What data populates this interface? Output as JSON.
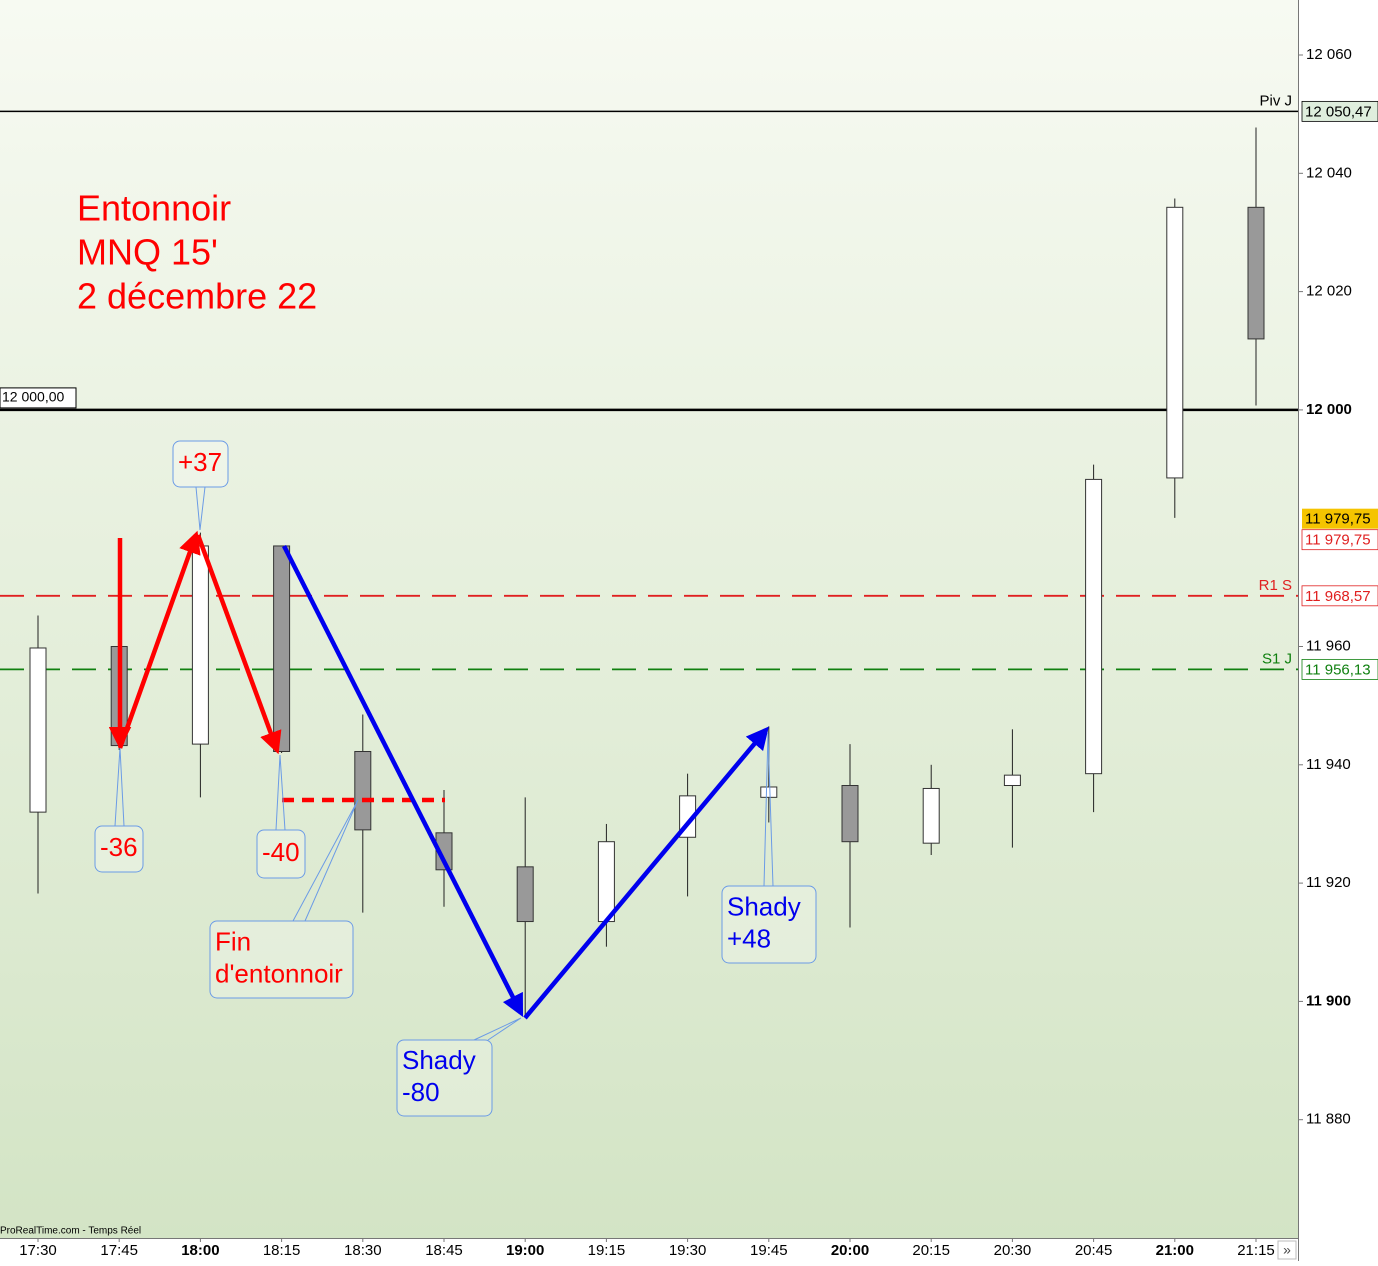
{
  "chart_data": {
    "type": "candlestick",
    "title_lines": [
      "Entonnoir",
      "MNQ 15'",
      "2 décembre 22"
    ],
    "title_color": "#ff0000",
    "categories": [
      "17:30",
      "17:45",
      "18:00",
      "18:15",
      "18:30",
      "18:45",
      "19:00",
      "19:15",
      "19:30",
      "19:45",
      "20:00",
      "20:15",
      "20:30",
      "20:45",
      "21:00",
      "21:15"
    ],
    "series": {
      "open": [
        11932,
        11960,
        11943.5,
        11977,
        11942.25,
        11928.5,
        11922.75,
        11913.5,
        11927.75,
        11934.5,
        11936.5,
        11926.75,
        11936.5,
        11938.5,
        11988.5,
        12034.25
      ],
      "high": [
        11965.25,
        11960.25,
        11979.25,
        11977,
        11948.5,
        11935.75,
        11934.5,
        11930,
        11938.5,
        11946.5,
        11943.5,
        11940,
        11946,
        11990.75,
        12035.75,
        12047.75
      ],
      "low": [
        11918.25,
        11942.5,
        11934.5,
        11942,
        11915,
        11916,
        11897.25,
        11909.25,
        11917.75,
        11930.25,
        11912.5,
        11924.75,
        11926,
        11932,
        11981.75,
        12000.75
      ],
      "close": [
        11959.75,
        11943.25,
        11977,
        11942.25,
        11929,
        11922.25,
        11913.5,
        11927,
        11934.75,
        11936.25,
        11927,
        11936,
        11938.25,
        11988.25,
        12034.25,
        12012
      ]
    },
    "up_color": "#ffffff",
    "down_color": "#999999",
    "ylim": [
      11860,
      12069.3
    ],
    "yticks": [
      {
        "value": 12060,
        "label": "12 060"
      },
      {
        "value": 12040,
        "label": "12 040"
      },
      {
        "value": 12020,
        "label": "12 020"
      },
      {
        "value": 12000,
        "label": "12 000"
      },
      {
        "value": 11960,
        "label": "11 960"
      },
      {
        "value": 11940,
        "label": "11 940"
      },
      {
        "value": 11920,
        "label": "11 920"
      },
      {
        "value": 11900,
        "label": "11 900"
      },
      {
        "value": 11880,
        "label": "11 880"
      }
    ],
    "levels": [
      {
        "name": "Piv J",
        "value": 12050.47,
        "label": "12 050,47",
        "color": "#000000",
        "dashed": false
      },
      {
        "name": "R1 S",
        "value": 11968.57,
        "label": "11 968,57",
        "color": "#e02020",
        "dashed": true
      },
      {
        "name": "S1 J",
        "value": 11956.13,
        "label": "11 956,13",
        "color": "#108010",
        "dashed": true
      }
    ],
    "hline": {
      "value": 12000,
      "label": "12 000,00"
    },
    "last_price": {
      "value": 11979.75,
      "label": "11 979,75"
    },
    "annotations": [
      {
        "lines": [
          "+37"
        ],
        "color": "#ff0000"
      },
      {
        "lines": [
          "-36"
        ],
        "color": "#ff0000"
      },
      {
        "lines": [
          "-40"
        ],
        "color": "#ff0000"
      },
      {
        "lines": [
          "Fin",
          "d'entonnoir"
        ],
        "color": "#ff0000"
      },
      {
        "lines": [
          "Shady",
          "-80"
        ],
        "color": "#0000ee"
      },
      {
        "lines": [
          "Shady",
          "+48"
        ],
        "color": "#0000ee"
      }
    ],
    "source": "ProRealTime.com - Temps Réel"
  }
}
